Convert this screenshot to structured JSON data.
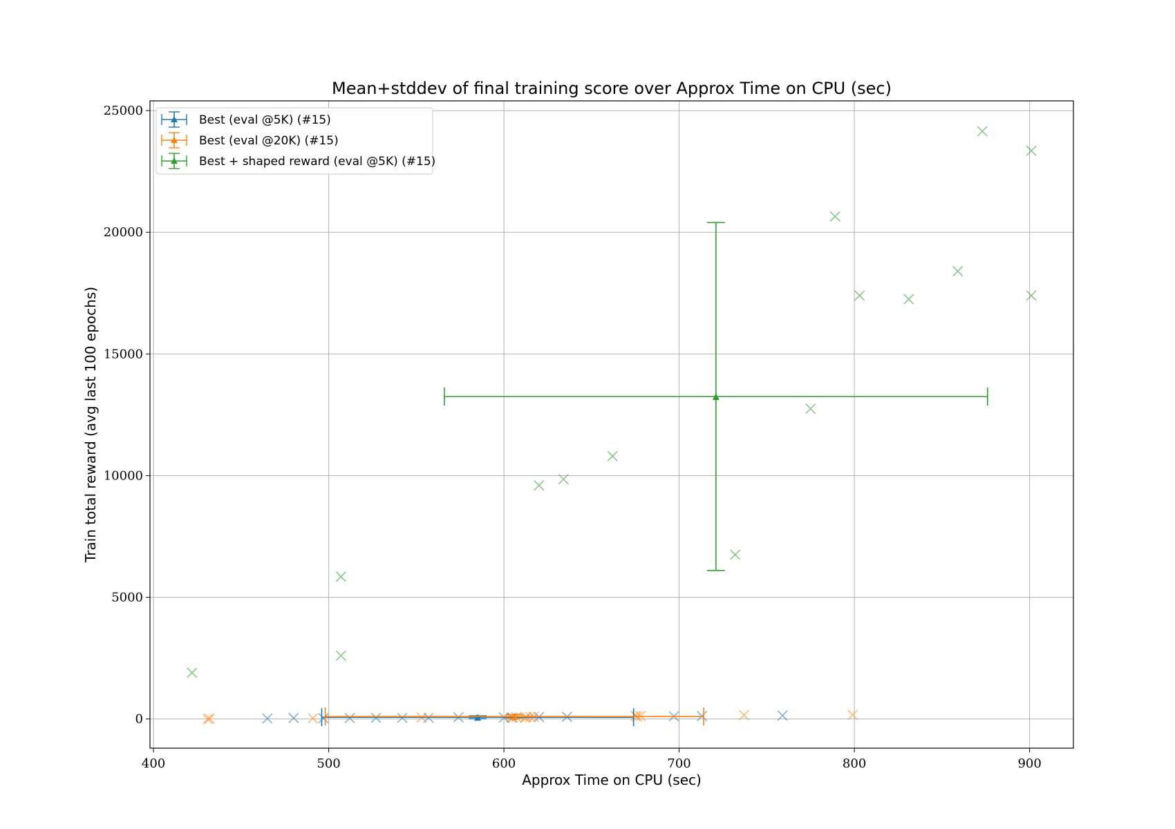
{
  "chart_data": {
    "type": "scatter",
    "title": "Mean+stddev of final training score over Approx Time on CPU (sec)",
    "xlabel": "Approx Time on CPU (sec)",
    "ylabel": "Train total reward (avg last 100 epochs)",
    "xlim": [
      398,
      925
    ],
    "ylim": [
      -1200,
      25400
    ],
    "xticks": [
      400,
      500,
      600,
      700,
      800,
      900
    ],
    "yticks": [
      0,
      5000,
      10000,
      15000,
      20000,
      25000
    ],
    "grid": true,
    "legend_position": "top-left",
    "series": [
      {
        "name": "Best (eval @5K) (#15)",
        "color": "#1f77b4",
        "points": [
          {
            "x": 465,
            "y": 20
          },
          {
            "x": 480,
            "y": 40
          },
          {
            "x": 497,
            "y": 30
          },
          {
            "x": 512,
            "y": 40
          },
          {
            "x": 527,
            "y": 50
          },
          {
            "x": 542,
            "y": 50
          },
          {
            "x": 557,
            "y": 50
          },
          {
            "x": 574,
            "y": 70
          },
          {
            "x": 605,
            "y": 50
          },
          {
            "x": 620,
            "y": 80
          },
          {
            "x": 636,
            "y": 90
          },
          {
            "x": 697,
            "y": 110
          },
          {
            "x": 713,
            "y": 120
          },
          {
            "x": 759,
            "y": 140
          },
          {
            "x": 600,
            "y": 60
          }
        ],
        "mean": {
          "x": 585,
          "y": 70
        },
        "xerr": 89,
        "yerr": 60
      },
      {
        "name": "Best (eval @20K) (#15)",
        "color": "#ff7f0e",
        "points": [
          {
            "x": 431,
            "y": 0
          },
          {
            "x": 432,
            "y": 10
          },
          {
            "x": 491,
            "y": 30
          },
          {
            "x": 553,
            "y": 60
          },
          {
            "x": 607,
            "y": 80
          },
          {
            "x": 613,
            "y": 70
          },
          {
            "x": 617,
            "y": 90
          },
          {
            "x": 676,
            "y": 100
          },
          {
            "x": 678,
            "y": 120
          },
          {
            "x": 737,
            "y": 160
          },
          {
            "x": 799,
            "y": 170
          },
          {
            "x": 604,
            "y": 60
          },
          {
            "x": 612,
            "y": 50
          },
          {
            "x": 615,
            "y": 80
          },
          {
            "x": 675,
            "y": 130
          }
        ],
        "mean": {
          "x": 606,
          "y": 100
        },
        "xerr": 108,
        "yerr": 80
      },
      {
        "name": "Best + shaped reward (eval @5K) (#15)",
        "color": "#2ca02c",
        "points": [
          {
            "x": 422,
            "y": 1900
          },
          {
            "x": 507,
            "y": 5850
          },
          {
            "x": 507,
            "y": 2600
          },
          {
            "x": 620,
            "y": 9600
          },
          {
            "x": 634,
            "y": 9850
          },
          {
            "x": 662,
            "y": 10800
          },
          {
            "x": 732,
            "y": 6750
          },
          {
            "x": 775,
            "y": 12750
          },
          {
            "x": 789,
            "y": 20650
          },
          {
            "x": 803,
            "y": 17400
          },
          {
            "x": 831,
            "y": 17250
          },
          {
            "x": 859,
            "y": 18400
          },
          {
            "x": 873,
            "y": 24150
          },
          {
            "x": 901,
            "y": 23350
          },
          {
            "x": 901,
            "y": 17400
          }
        ],
        "mean": {
          "x": 721,
          "y": 13250
        },
        "xerr": 155,
        "yerr": 7150
      }
    ]
  }
}
